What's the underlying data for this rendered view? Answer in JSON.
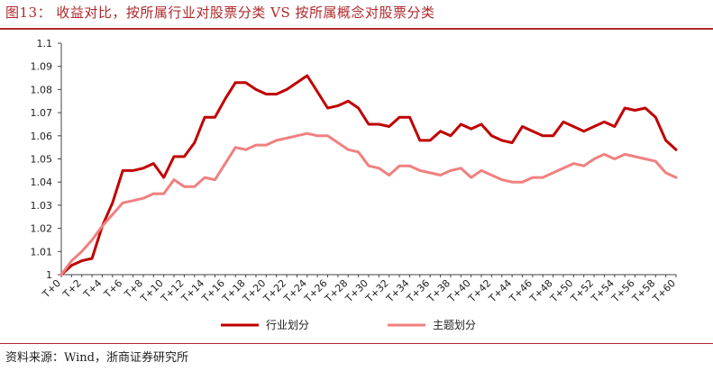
{
  "figure": {
    "title": "图13：  收益对比，按所属行业对股票分类 VS 按所属概念对股票分类",
    "source": "资料来源：Wind，浙商证券研究所"
  },
  "chart_data": {
    "type": "line",
    "x": [
      "T+0",
      "T+1",
      "T+2",
      "T+3",
      "T+4",
      "T+5",
      "T+6",
      "T+7",
      "T+8",
      "T+9",
      "T+10",
      "T+11",
      "T+12",
      "T+13",
      "T+14",
      "T+15",
      "T+16",
      "T+17",
      "T+18",
      "T+19",
      "T+20",
      "T+21",
      "T+22",
      "T+23",
      "T+24",
      "T+25",
      "T+26",
      "T+27",
      "T+28",
      "T+29",
      "T+30",
      "T+31",
      "T+32",
      "T+33",
      "T+34",
      "T+35",
      "T+36",
      "T+37",
      "T+38",
      "T+39",
      "T+40",
      "T+41",
      "T+42",
      "T+43",
      "T+44",
      "T+45",
      "T+46",
      "T+47",
      "T+48",
      "T+49",
      "T+50",
      "T+51",
      "T+52",
      "T+53",
      "T+54",
      "T+55",
      "T+56",
      "T+57",
      "T+58",
      "T+59",
      "T+60"
    ],
    "x_tick_labels": [
      "T+0",
      "T+2",
      "T+4",
      "T+6",
      "T+8",
      "T+10",
      "T+12",
      "T+14",
      "T+16",
      "T+18",
      "T+20",
      "T+22",
      "T+24",
      "T+26",
      "T+28",
      "T+30",
      "T+32",
      "T+34",
      "T+36",
      "T+38",
      "T+40",
      "T+42",
      "T+44",
      "T+46",
      "T+48",
      "T+50",
      "T+52",
      "T+54",
      "T+56",
      "T+58",
      "T+60"
    ],
    "y_tick_labels": [
      "1",
      "1.01",
      "1.02",
      "1.03",
      "1.04",
      "1.05",
      "1.06",
      "1.07",
      "1.08",
      "1.09",
      "1.1"
    ],
    "ylim": [
      1.0,
      1.1
    ],
    "grid": false,
    "legend_position": "bottom",
    "series": [
      {
        "name": "行业划分",
        "color": "#c00000",
        "values": [
          1.0,
          1.004,
          1.006,
          1.007,
          1.021,
          1.031,
          1.045,
          1.045,
          1.046,
          1.048,
          1.042,
          1.051,
          1.051,
          1.057,
          1.068,
          1.068,
          1.076,
          1.083,
          1.083,
          1.08,
          1.078,
          1.078,
          1.08,
          1.083,
          1.086,
          1.079,
          1.072,
          1.073,
          1.075,
          1.072,
          1.065,
          1.065,
          1.064,
          1.068,
          1.068,
          1.058,
          1.058,
          1.062,
          1.06,
          1.065,
          1.063,
          1.065,
          1.06,
          1.058,
          1.057,
          1.064,
          1.062,
          1.06,
          1.06,
          1.066,
          1.064,
          1.062,
          1.064,
          1.066,
          1.064,
          1.072,
          1.071,
          1.072,
          1.068,
          1.058,
          1.054
        ]
      },
      {
        "name": "主题划分",
        "color": "#f08080",
        "values": [
          1.0,
          1.006,
          1.01,
          1.015,
          1.021,
          1.026,
          1.031,
          1.032,
          1.033,
          1.035,
          1.035,
          1.041,
          1.038,
          1.038,
          1.042,
          1.041,
          1.048,
          1.055,
          1.054,
          1.056,
          1.056,
          1.058,
          1.059,
          1.06,
          1.061,
          1.06,
          1.06,
          1.057,
          1.054,
          1.053,
          1.047,
          1.046,
          1.043,
          1.047,
          1.047,
          1.045,
          1.044,
          1.043,
          1.045,
          1.046,
          1.042,
          1.045,
          1.043,
          1.041,
          1.04,
          1.04,
          1.042,
          1.042,
          1.044,
          1.046,
          1.048,
          1.047,
          1.05,
          1.052,
          1.05,
          1.052,
          1.051,
          1.05,
          1.049,
          1.044,
          1.042
        ]
      }
    ]
  }
}
